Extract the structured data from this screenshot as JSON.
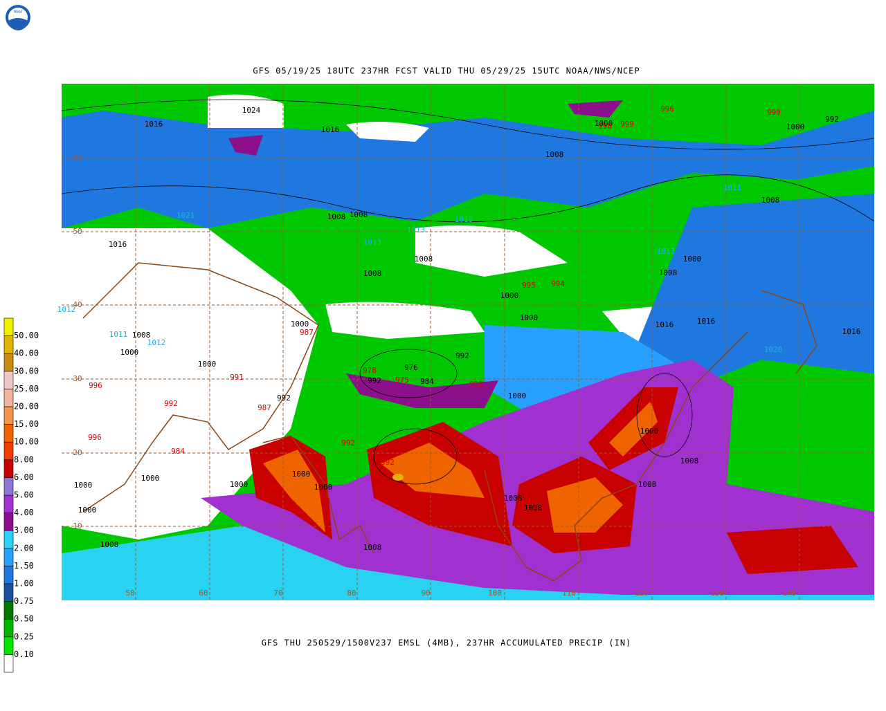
{
  "header": {
    "title": "GFS 05/19/25 18UTC 237HR FCST VALID THU 05/29/25 15UTC NOAA/NWS/NCEP"
  },
  "footer": {
    "caption": "GFS THU 250529/1500V237 EMSL (4MB), 237HR ACCUMULATED PRECIP (IN)"
  },
  "logo": {
    "label": "NOAA"
  },
  "colorbar": {
    "labels": [
      "0.10",
      "0.25",
      "0.50",
      "0.75",
      "1.00",
      "1.50",
      "2.00",
      "3.00",
      "4.00",
      "5.00",
      "6.00",
      "8.00",
      "10.00",
      "15.00",
      "20.00",
      "25.00",
      "30.00",
      "40.00",
      "50.00"
    ],
    "colors": [
      "#ffffff",
      "#00e600",
      "#00b400",
      "#007800",
      "#1e4f9a",
      "#1e78e0",
      "#28a0ff",
      "#28d2f0",
      "#8c0f8c",
      "#a030d0",
      "#8c78d0",
      "#c80000",
      "#f03c00",
      "#f06400",
      "#f09650",
      "#f0b4a0",
      "#f0c8c8",
      "#c88c14",
      "#e0b400",
      "#f0f000"
    ]
  },
  "map": {
    "isobar_labels": [
      "1024",
      "1016",
      "1016",
      "1008",
      "1000",
      "992",
      "1008",
      "1008",
      "1016",
      "1008",
      "1008",
      "1000",
      "1000",
      "1008",
      "1000",
      "1008",
      "1016",
      "1000",
      "1008",
      "1000",
      "1000",
      "992",
      "992",
      "976",
      "992",
      "984",
      "1000",
      "1000",
      "1008",
      "1000",
      "1000",
      "1000",
      "1000",
      "1000",
      "1000",
      "1008",
      "1008",
      "1008",
      "1008",
      "1008",
      "1016",
      "1016",
      "1000"
    ],
    "low_labels": [
      "998",
      "999",
      "996",
      "990",
      "995",
      "994",
      "987",
      "991",
      "996",
      "992",
      "987",
      "996",
      "984",
      "978",
      "975",
      "991",
      "982",
      "992",
      "992",
      "992"
    ],
    "high_labels": [
      "1021",
      "1013",
      "1013",
      "1013",
      "1011",
      "1013",
      "1011",
      "1012",
      "1020",
      "1012"
    ],
    "lat_labels": [
      "60",
      "50",
      "40",
      "30",
      "20",
      "10"
    ],
    "lon_labels": [
      "50",
      "60",
      "70",
      "80",
      "90",
      "100",
      "110",
      "120",
      "130",
      "140"
    ]
  }
}
